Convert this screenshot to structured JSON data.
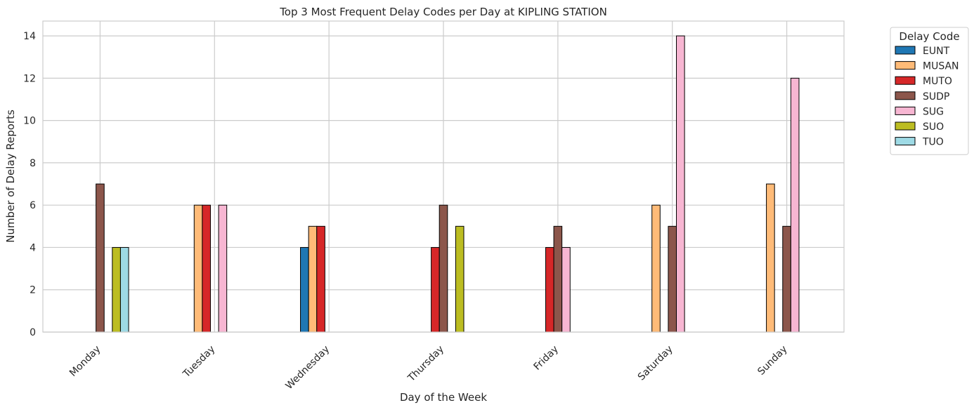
{
  "chart_data": {
    "type": "bar",
    "title": "Top 3 Most Frequent Delay Codes per Day at KIPLING STATION",
    "xlabel": "Day of the Week",
    "ylabel": "Number of Delay Reports",
    "ylim": [
      0,
      14.7
    ],
    "yticks": [
      0,
      2,
      4,
      6,
      8,
      10,
      12,
      14
    ],
    "grid": true,
    "legend_title": "Delay Code",
    "legend_position": "outside-upper-right",
    "categories": [
      "Monday",
      "Tuesday",
      "Wednesday",
      "Thursday",
      "Friday",
      "Saturday",
      "Sunday"
    ],
    "series": [
      {
        "name": "EUNT",
        "color": "#1f77b4",
        "values": [
          0,
          0,
          4,
          0,
          0,
          0,
          0
        ]
      },
      {
        "name": "MUSAN",
        "color": "#ffbb78",
        "values": [
          0,
          6,
          5,
          0,
          0,
          6,
          7
        ]
      },
      {
        "name": "MUTO",
        "color": "#d62728",
        "values": [
          0,
          6,
          5,
          4,
          4,
          0,
          0
        ]
      },
      {
        "name": "SUDP",
        "color": "#8c564b",
        "values": [
          7,
          0,
          0,
          6,
          5,
          5,
          5
        ]
      },
      {
        "name": "SUG",
        "color": "#f7b6d2",
        "values": [
          0,
          6,
          0,
          0,
          4,
          14,
          12
        ]
      },
      {
        "name": "SUO",
        "color": "#bcbd22",
        "values": [
          4,
          0,
          0,
          5,
          0,
          0,
          0
        ]
      },
      {
        "name": "TUO",
        "color": "#9edae5",
        "values": [
          4,
          0,
          0,
          0,
          0,
          0,
          0
        ]
      }
    ]
  }
}
